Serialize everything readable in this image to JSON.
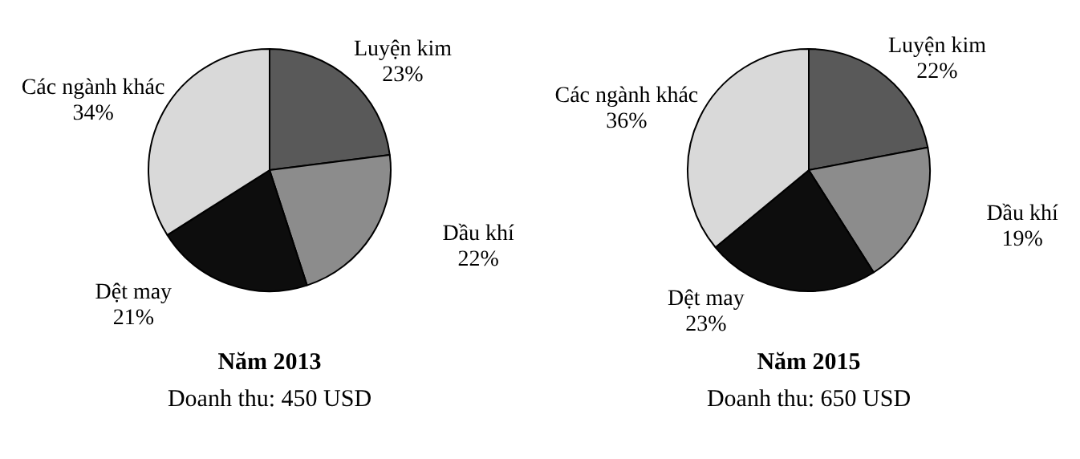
{
  "chart_data": [
    {
      "type": "pie",
      "title": "Năm 2013",
      "annotations": [
        "Doanh thu: 450 USD"
      ],
      "categories": [
        "Luyện kim",
        "Dầu khí",
        "Dệt may",
        "Các ngành khác"
      ],
      "values": [
        23,
        22,
        21,
        34
      ],
      "value_labels": [
        "23%",
        "22%",
        "21%",
        "34%"
      ],
      "colors": [
        "#595959",
        "#8c8c8c",
        "#0d0d0d",
        "#d9d9d9"
      ],
      "legend": false
    },
    {
      "type": "pie",
      "title": "Năm 2015",
      "annotations": [
        "Doanh thu: 650 USD"
      ],
      "categories": [
        "Luyện kim",
        "Dầu khí",
        "Dệt may",
        "Các ngành khác"
      ],
      "values": [
        22,
        19,
        23,
        36
      ],
      "value_labels": [
        "22%",
        "19%",
        "23%",
        "36%"
      ],
      "colors": [
        "#595959",
        "#8c8c8c",
        "#0d0d0d",
        "#d9d9d9"
      ],
      "legend": false
    }
  ]
}
